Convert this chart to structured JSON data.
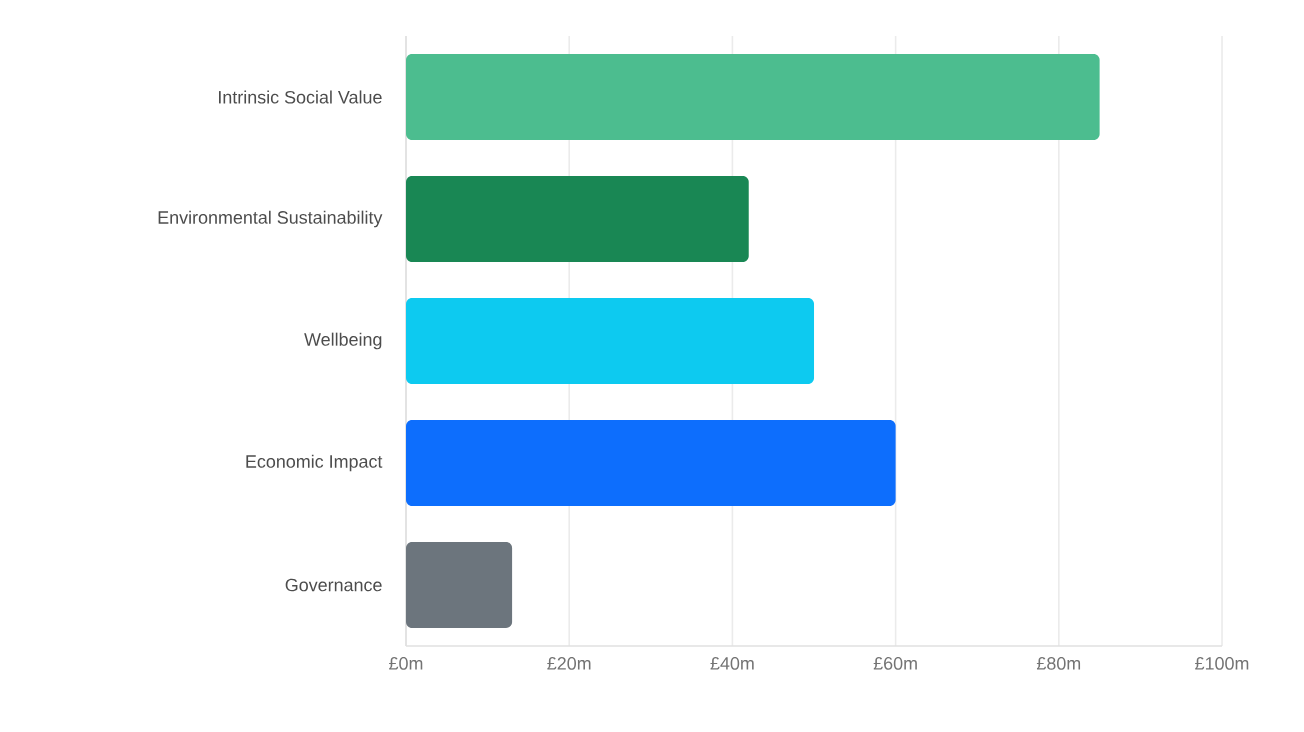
{
  "chart_data": {
    "type": "bar",
    "orientation": "horizontal",
    "categories": [
      "Intrinsic Social Value",
      "Environmental Sustainability",
      "Wellbeing",
      "Economic Impact",
      "Governance"
    ],
    "values": [
      85,
      42,
      50,
      60,
      13
    ],
    "colors": [
      "#4cbd8f",
      "#198754",
      "#0dcaf0",
      "#0d6efd",
      "#6c757d"
    ],
    "xlim": [
      0,
      100
    ],
    "xticks": [
      {
        "value": 0,
        "label": "£0m"
      },
      {
        "value": 20,
        "label": "£20m"
      },
      {
        "value": 40,
        "label": "£40m"
      },
      {
        "value": 60,
        "label": "£60m"
      },
      {
        "value": 80,
        "label": "£80m"
      },
      {
        "value": 100,
        "label": "£100m"
      }
    ],
    "grid": "x"
  }
}
